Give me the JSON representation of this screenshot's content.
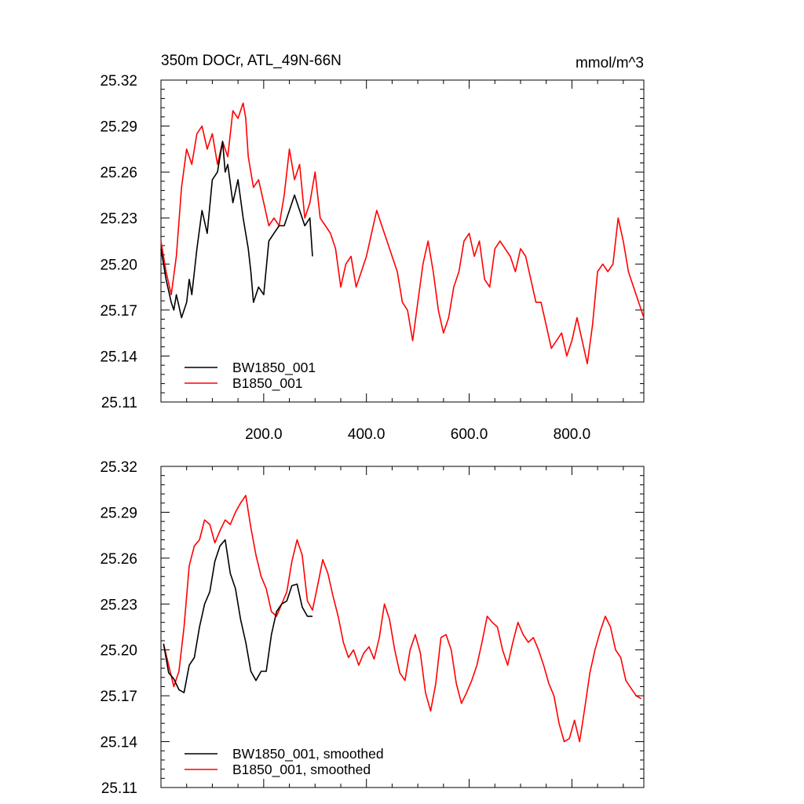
{
  "title_left": "350m DOCr, ATL_49N-66N",
  "title_right": "mmol/m^3",
  "chart_data": [
    {
      "type": "line",
      "title": "350m DOCr, ATL_49N-66N",
      "units": "mmol/m^3",
      "xlim": [
        0,
        940
      ],
      "ylim": [
        25.11,
        25.32
      ],
      "y_ticks": [
        25.11,
        25.14,
        25.17,
        25.2,
        25.23,
        25.26,
        25.29,
        25.32
      ],
      "y_tick_labels": [
        "25.11",
        "25.14",
        "25.17",
        "25.20",
        "25.23",
        "25.26",
        "25.29",
        "25.32"
      ],
      "x_ticks": [
        200,
        400,
        600,
        800
      ],
      "x_tick_labels": [
        "200.0",
        "400.0",
        "600.0",
        "800.0"
      ],
      "legend_position": "bottom-left",
      "series": [
        {
          "name": "BW1850_001",
          "color": "#000000",
          "x": [
            0,
            10,
            20,
            25,
            30,
            40,
            50,
            55,
            60,
            70,
            80,
            90,
            100,
            110,
            115,
            120,
            125,
            130,
            140,
            150,
            160,
            170,
            175,
            180,
            190,
            200,
            210,
            220,
            230,
            240,
            250,
            260,
            270,
            280,
            290,
            295
          ],
          "y": [
            25.21,
            25.19,
            25.175,
            25.17,
            25.18,
            25.165,
            25.175,
            25.19,
            25.18,
            25.21,
            25.235,
            25.22,
            25.255,
            25.26,
            25.27,
            25.28,
            25.26,
            25.265,
            25.24,
            25.255,
            25.23,
            25.21,
            25.195,
            25.175,
            25.185,
            25.18,
            25.215,
            25.22,
            25.225,
            25.225,
            25.235,
            25.245,
            25.235,
            25.225,
            25.23,
            25.205
          ]
        },
        {
          "name": "B1850_001",
          "color": "#ff0000",
          "x": [
            0,
            10,
            20,
            30,
            40,
            50,
            60,
            70,
            80,
            90,
            100,
            110,
            120,
            130,
            140,
            150,
            160,
            165,
            170,
            180,
            190,
            200,
            210,
            220,
            230,
            240,
            250,
            260,
            270,
            280,
            290,
            300,
            310,
            320,
            330,
            340,
            350,
            360,
            370,
            380,
            390,
            400,
            410,
            420,
            430,
            440,
            450,
            460,
            470,
            480,
            490,
            500,
            510,
            520,
            530,
            540,
            550,
            560,
            570,
            580,
            590,
            600,
            610,
            620,
            630,
            640,
            650,
            660,
            670,
            680,
            690,
            700,
            710,
            720,
            730,
            740,
            750,
            760,
            770,
            780,
            790,
            800,
            810,
            820,
            830,
            840,
            850,
            860,
            870,
            880,
            890,
            900,
            910,
            920,
            930,
            940
          ],
          "y": [
            25.215,
            25.195,
            25.18,
            25.205,
            25.25,
            25.275,
            25.265,
            25.285,
            25.29,
            25.275,
            25.285,
            25.265,
            25.28,
            25.27,
            25.3,
            25.295,
            25.305,
            25.295,
            25.27,
            25.25,
            25.255,
            25.24,
            25.225,
            25.23,
            25.225,
            25.245,
            25.275,
            25.255,
            25.265,
            25.23,
            25.24,
            25.26,
            25.23,
            25.225,
            25.22,
            25.21,
            25.185,
            25.2,
            25.205,
            25.185,
            25.195,
            25.205,
            25.22,
            25.235,
            25.225,
            25.215,
            25.205,
            25.195,
            25.175,
            25.17,
            25.15,
            25.175,
            25.2,
            25.215,
            25.195,
            25.17,
            25.155,
            25.165,
            25.185,
            25.195,
            25.215,
            25.22,
            25.205,
            25.215,
            25.19,
            25.185,
            25.21,
            25.215,
            25.21,
            25.205,
            25.195,
            25.21,
            25.205,
            25.19,
            25.175,
            25.175,
            25.16,
            25.145,
            25.15,
            25.155,
            25.14,
            25.15,
            25.165,
            25.15,
            25.135,
            25.16,
            25.195,
            25.2,
            25.195,
            25.2,
            25.23,
            25.215,
            25.195,
            25.185,
            25.175,
            25.165
          ]
        }
      ]
    },
    {
      "type": "line",
      "xlim": [
        0,
        940
      ],
      "ylim": [
        25.11,
        25.32
      ],
      "y_ticks": [
        25.11,
        25.14,
        25.17,
        25.2,
        25.23,
        25.26,
        25.29,
        25.32
      ],
      "y_tick_labels": [
        "25.11",
        "25.14",
        "25.17",
        "25.20",
        "25.23",
        "25.26",
        "25.29",
        "25.32"
      ],
      "legend_position": "bottom-left",
      "series": [
        {
          "name": "BW1850_001, smoothed",
          "color": "#000000",
          "x": [
            5,
            15,
            25,
            35,
            45,
            55,
            65,
            75,
            85,
            95,
            105,
            115,
            125,
            135,
            145,
            155,
            165,
            175,
            185,
            195,
            205,
            215,
            225,
            235,
            245,
            255,
            265,
            275,
            285,
            295
          ],
          "y": [
            25.204,
            25.185,
            25.181,
            25.174,
            25.172,
            25.19,
            25.195,
            25.215,
            25.23,
            25.238,
            25.258,
            25.268,
            25.272,
            25.25,
            25.24,
            25.22,
            25.205,
            25.186,
            25.18,
            25.186,
            25.186,
            25.21,
            25.225,
            25.23,
            25.232,
            25.242,
            25.243,
            25.228,
            25.222,
            25.222
          ]
        },
        {
          "name": "B1850_001, smoothed",
          "color": "#ff0000",
          "x": [
            5,
            15,
            25,
            35,
            45,
            55,
            65,
            75,
            85,
            95,
            105,
            115,
            125,
            135,
            145,
            155,
            165,
            175,
            185,
            195,
            205,
            215,
            225,
            235,
            245,
            255,
            265,
            275,
            285,
            295,
            305,
            315,
            325,
            335,
            345,
            355,
            365,
            375,
            385,
            395,
            405,
            415,
            425,
            435,
            445,
            455,
            465,
            475,
            485,
            495,
            505,
            515,
            525,
            535,
            545,
            555,
            565,
            575,
            585,
            595,
            605,
            615,
            625,
            635,
            645,
            655,
            665,
            675,
            685,
            695,
            705,
            715,
            725,
            735,
            745,
            755,
            765,
            775,
            785,
            795,
            805,
            815,
            825,
            835,
            845,
            855,
            865,
            875,
            885,
            895,
            905,
            915,
            925,
            935
          ],
          "y": [
            25.204,
            25.19,
            25.176,
            25.186,
            25.215,
            25.255,
            25.268,
            25.272,
            25.285,
            25.282,
            25.27,
            25.278,
            25.285,
            25.282,
            25.29,
            25.296,
            25.301,
            25.28,
            25.262,
            25.248,
            25.24,
            25.225,
            25.222,
            25.23,
            25.238,
            25.258,
            25.272,
            25.262,
            25.232,
            25.226,
            25.242,
            25.259,
            25.25,
            25.235,
            25.222,
            25.205,
            25.195,
            25.2,
            25.19,
            25.198,
            25.202,
            25.194,
            25.208,
            25.23,
            25.22,
            25.2,
            25.185,
            25.18,
            25.2,
            25.21,
            25.198,
            25.172,
            25.16,
            25.178,
            25.208,
            25.21,
            25.2,
            25.178,
            25.165,
            25.172,
            25.18,
            25.19,
            25.205,
            25.222,
            25.218,
            25.215,
            25.2,
            25.19,
            25.205,
            25.218,
            25.21,
            25.205,
            25.208,
            25.2,
            25.19,
            25.178,
            25.17,
            25.152,
            25.14,
            25.142,
            25.154,
            25.14,
            25.162,
            25.185,
            25.2,
            25.212,
            25.222,
            25.215,
            25.2,
            25.195,
            25.18,
            25.175,
            25.17,
            25.168
          ]
        }
      ]
    }
  ]
}
